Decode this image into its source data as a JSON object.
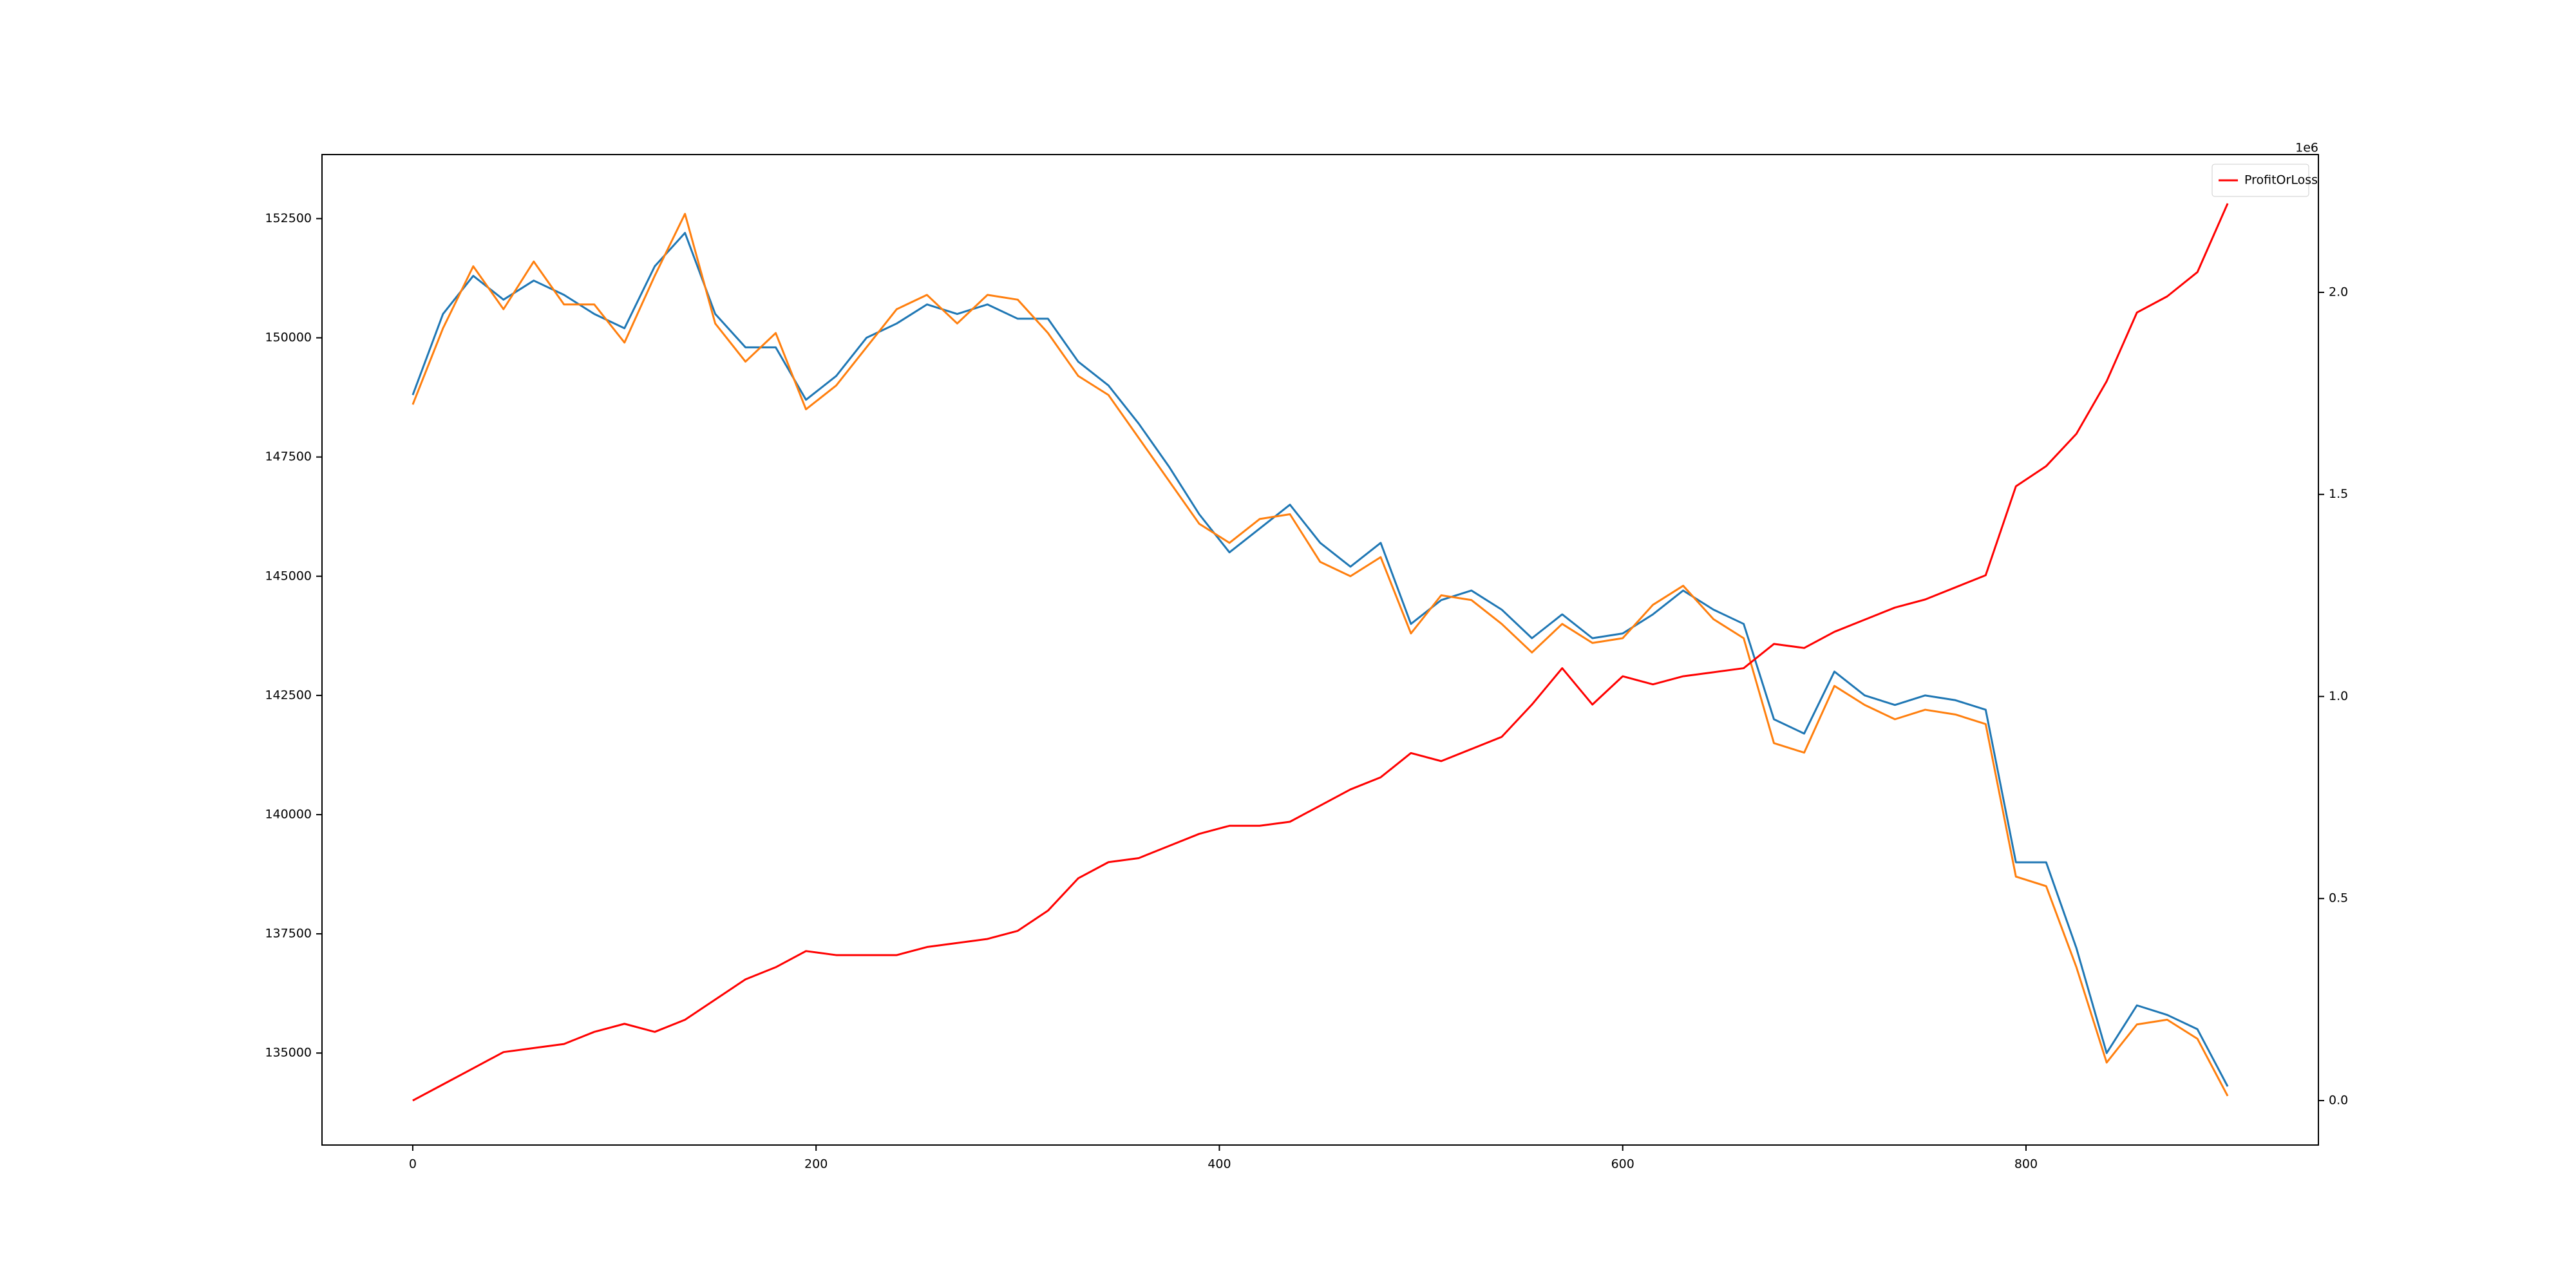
{
  "chart_data": {
    "type": "line",
    "x": [
      0,
      15,
      30,
      45,
      60,
      75,
      90,
      105,
      120,
      135,
      150,
      165,
      180,
      195,
      210,
      225,
      240,
      255,
      270,
      285,
      300,
      315,
      330,
      345,
      360,
      375,
      390,
      405,
      420,
      435,
      450,
      465,
      480,
      495,
      510,
      525,
      540,
      555,
      570,
      585,
      600,
      615,
      630,
      645,
      660,
      675,
      690,
      705,
      720,
      735,
      750,
      765,
      780,
      795,
      810,
      825,
      840,
      855,
      870,
      885,
      900
    ],
    "series": [
      {
        "color": "#1f77b4",
        "values": [
          148800,
          150500,
          151300,
          150800,
          151200,
          150900,
          150500,
          150200,
          151500,
          152200,
          150500,
          149800,
          149800,
          148700,
          149200,
          150000,
          150300,
          150700,
          150500,
          150700,
          150400,
          150400,
          149500,
          149000,
          148200,
          147300,
          146300,
          145500,
          146000,
          146500,
          145700,
          145200,
          145700,
          144000,
          144500,
          144700,
          144300,
          143700,
          144200,
          143700,
          143800,
          144200,
          144700,
          144300,
          144000,
          142000,
          141700,
          143000,
          142500,
          142300,
          142500,
          142400,
          142200,
          139000,
          139000,
          137200,
          135000,
          136000,
          135800,
          135500,
          134300
        ]
      },
      {
        "color": "#ff7f0e",
        "values": [
          148600,
          150200,
          151500,
          150600,
          151600,
          150700,
          150700,
          149900,
          151300,
          152600,
          150300,
          149500,
          150100,
          148500,
          149000,
          149800,
          150600,
          150900,
          150300,
          150900,
          150800,
          150100,
          149200,
          148800,
          147900,
          147000,
          146100,
          145700,
          146200,
          146300,
          145300,
          145000,
          145400,
          143800,
          144600,
          144500,
          144000,
          143400,
          144000,
          143600,
          143700,
          144400,
          144800,
          144100,
          143700,
          141500,
          141300,
          142700,
          142300,
          142000,
          142200,
          142100,
          141900,
          138700,
          138500,
          136800,
          134800,
          135600,
          135700,
          135300,
          134100
        ]
      },
      {
        "name": "ProfitOrLoss",
        "color": "#ff0000",
        "axis": "y2",
        "values": [
          0.0,
          0.04,
          0.08,
          0.12,
          0.13,
          0.14,
          0.17,
          0.19,
          0.17,
          0.2,
          0.25,
          0.3,
          0.33,
          0.37,
          0.36,
          0.36,
          0.36,
          0.38,
          0.39,
          0.4,
          0.42,
          0.47,
          0.55,
          0.59,
          0.6,
          0.63,
          0.66,
          0.68,
          0.68,
          0.69,
          0.73,
          0.77,
          0.8,
          0.86,
          0.84,
          0.87,
          0.9,
          0.98,
          1.07,
          0.98,
          1.05,
          1.03,
          1.05,
          1.06,
          1.07,
          1.13,
          1.12,
          1.16,
          1.19,
          1.22,
          1.24,
          1.27,
          1.3,
          1.52,
          1.57,
          1.65,
          1.78,
          1.95,
          1.99,
          2.05,
          2.22
        ]
      }
    ],
    "xlim": [
      -45,
      945
    ],
    "xticks": [
      0,
      200,
      400,
      600,
      800
    ],
    "ylim": [
      133071,
      153843
    ],
    "yticks": [
      135000,
      137500,
      140000,
      142500,
      145000,
      147500,
      150000,
      152500
    ],
    "y2lim": [
      -0.11,
      2.341
    ],
    "y2ticks": [
      {
        "value": 0,
        "label": "0.0"
      },
      0.5,
      {
        "value": 1,
        "label": "1.0"
      },
      1.5,
      {
        "value": 2,
        "label": "2.0"
      }
    ],
    "y2_offset_label": "1e6",
    "legend": "upper right"
  }
}
